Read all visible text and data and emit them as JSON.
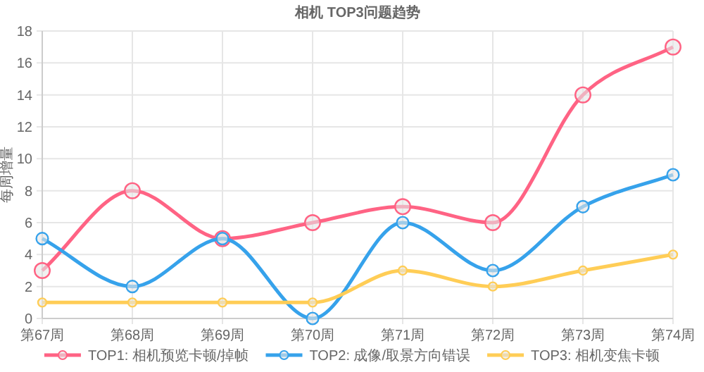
{
  "chart_data": {
    "type": "line",
    "title": "相机 TOP3问题趋势",
    "ylabel": "每周增量",
    "categories": [
      "第67周",
      "第68周",
      "第69周",
      "第70周",
      "第71周",
      "第72周",
      "第73周",
      "第74周"
    ],
    "series": [
      {
        "name": "TOP1: 相机预览卡顿/掉帧",
        "color": "#ff6384",
        "values": [
          3,
          8,
          5,
          6,
          7,
          6,
          14,
          17
        ]
      },
      {
        "name": "TOP2: 成像/取景方向错误",
        "color": "#36a2eb",
        "values": [
          5,
          2,
          5,
          0,
          6,
          3,
          7,
          9
        ]
      },
      {
        "name": "TOP3: 相机变焦卡顿",
        "color": "#ffcd56",
        "values": [
          1,
          1,
          1,
          1,
          3,
          2,
          3,
          4
        ]
      }
    ],
    "ylim": [
      0,
      18
    ],
    "yticks": [
      0,
      2,
      4,
      6,
      8,
      10,
      12,
      14,
      16,
      18
    ],
    "grid": true,
    "legend": "bottom",
    "marker": "circle",
    "line_style": "solid"
  }
}
